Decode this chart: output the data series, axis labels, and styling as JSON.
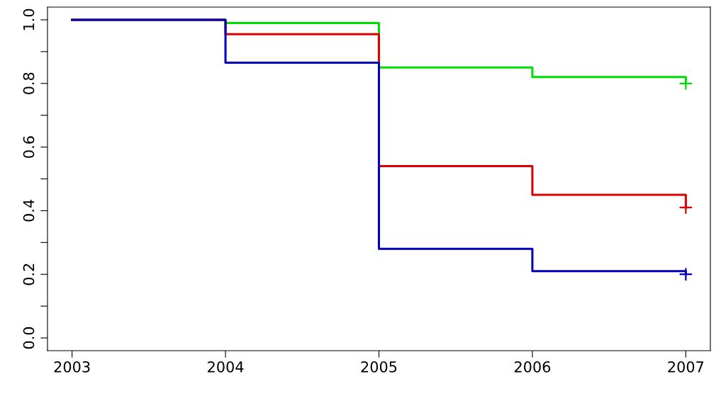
{
  "chart_data": {
    "type": "step",
    "xlim": [
      2002.84,
      2007.16
    ],
    "ylim": [
      -0.04,
      1.04
    ],
    "xticks": [
      2003,
      2004,
      2005,
      2006,
      2007
    ],
    "yticks": [
      {
        "value": 0,
        "label": "0.0"
      },
      {
        "value": 0.1,
        "label": null
      },
      {
        "value": 0.2,
        "label": "0.2"
      },
      {
        "value": 0.3,
        "label": null
      },
      {
        "value": 0.4,
        "label": "0.4"
      },
      {
        "value": 0.5,
        "label": null
      },
      {
        "value": 0.6,
        "label": "0.6"
      },
      {
        "value": 0.7,
        "label": null
      },
      {
        "value": 0.8,
        "label": "0.8"
      },
      {
        "value": 0.9,
        "label": null
      },
      {
        "value": 1.0,
        "label": "1.0"
      }
    ],
    "grid": false,
    "legend": false,
    "series": [
      {
        "color": "#00dd00",
        "x": [
          2003,
          2004,
          2005,
          2006,
          2007
        ],
        "values": [
          1.0,
          0.99,
          0.85,
          0.82,
          0.8
        ]
      },
      {
        "color": "#dd0000",
        "x": [
          2003,
          2004,
          2005,
          2006,
          2007
        ],
        "values": [
          1.0,
          0.955,
          0.54,
          0.45,
          0.41
        ]
      },
      {
        "color": "#0000bb",
        "x": [
          2003,
          2004,
          2005,
          2006,
          2007
        ],
        "values": [
          1.0,
          0.865,
          0.28,
          0.21,
          0.2
        ]
      },
      {
        "type": "scatter",
        "marker": "cross",
        "color": "#00dd00",
        "x": [
          2007
        ],
        "values": [
          0.8
        ]
      },
      {
        "type": "scatter",
        "marker": "cross",
        "color": "#dd0000",
        "x": [
          2007
        ],
        "values": [
          0.41
        ]
      },
      {
        "type": "scatter",
        "marker": "cross",
        "color": "#0000bb",
        "x": [
          2007
        ],
        "values": [
          0.2
        ]
      }
    ]
  }
}
